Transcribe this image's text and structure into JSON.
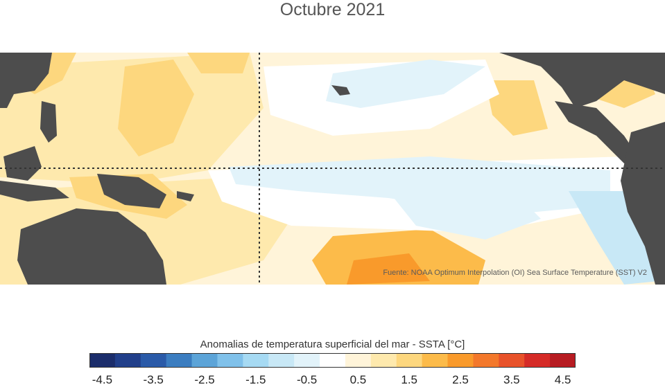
{
  "title": "Octubre 2021",
  "source": "Fuente: NOAA Optimum Interpolation (OI) Sea Surface Temperature (SST) V2",
  "colorbar": {
    "title": "Anomalias de temperatura superficial del mar - SSTA  [°C]",
    "ticks": [
      "-4.5",
      "-3.5",
      "-2.5",
      "-1.5",
      "-0.5",
      "0.5",
      "1.5",
      "2.5",
      "3.5",
      "4.5"
    ],
    "colors": [
      "#1b2d6b",
      "#213f8a",
      "#2a5aa8",
      "#3b7dc0",
      "#5ca4d8",
      "#80c1ea",
      "#a6daf3",
      "#c8e8f6",
      "#e2f3fa",
      "#ffffff",
      "#fff4d9",
      "#fee9ad",
      "#fdd77e",
      "#fcbb4a",
      "#f99a2b",
      "#f3782b",
      "#e8522a",
      "#d52b27",
      "#b71c22"
    ]
  },
  "palette": {
    "land": "#4d4d4d",
    "ocean_neutral": "#ffffff",
    "warm_1": "#fff4d9",
    "warm_2": "#fee9ad",
    "warm_3": "#fdd77e",
    "warm_4": "#fcbb4a",
    "warm_5": "#f99a2b",
    "warm_6": "#f3782b",
    "cool_1": "#e2f3fa",
    "cool_2": "#c8e8f6"
  }
}
